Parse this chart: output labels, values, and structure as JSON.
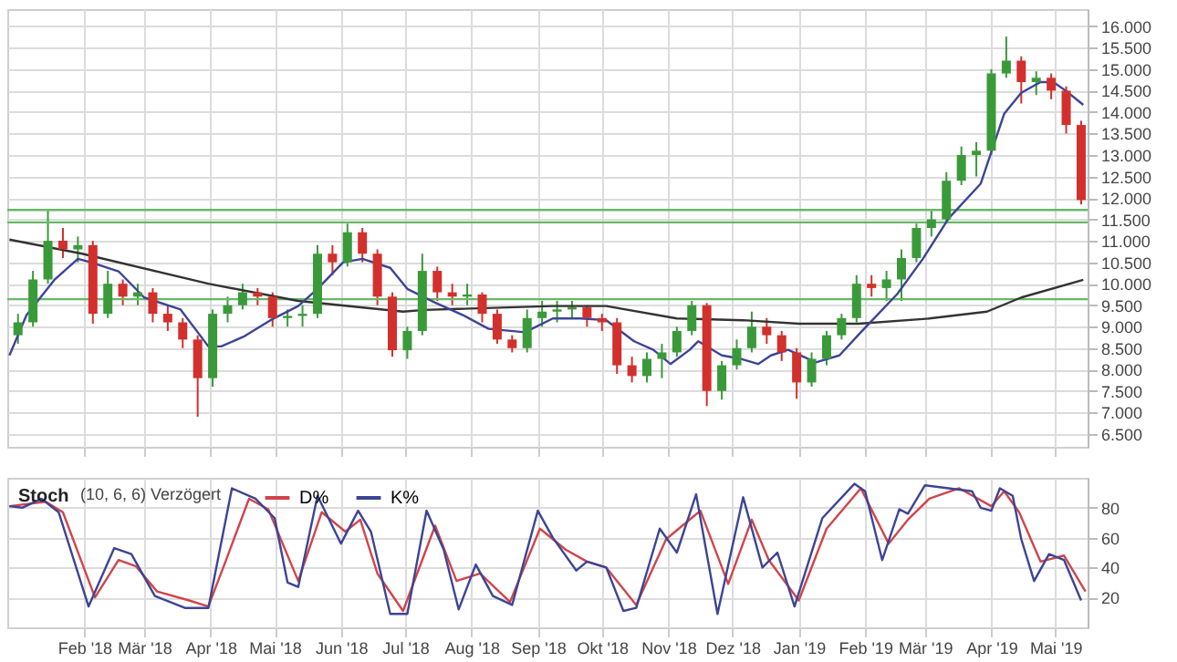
{
  "chart_data": [
    {
      "type": "candlestick",
      "x": [
        "2018-01-01",
        "2018-01-08",
        "2018-01-15",
        "2018-01-22",
        "2018-01-29",
        "2018-02-05",
        "2018-02-12",
        "2018-02-19",
        "2018-02-26",
        "2018-03-05",
        "2018-03-12",
        "2018-03-19",
        "2018-03-26",
        "2018-04-02",
        "2018-04-09",
        "2018-04-16",
        "2018-04-23",
        "2018-04-30",
        "2018-05-07",
        "2018-05-14",
        "2018-05-21",
        "2018-05-28",
        "2018-06-04",
        "2018-06-11",
        "2018-06-18",
        "2018-06-25",
        "2018-07-02",
        "2018-07-09",
        "2018-07-16",
        "2018-07-23",
        "2018-07-30",
        "2018-08-06",
        "2018-08-13",
        "2018-08-20",
        "2018-08-27",
        "2018-09-03",
        "2018-09-10",
        "2018-09-17",
        "2018-09-24",
        "2018-10-01",
        "2018-10-08",
        "2018-10-15",
        "2018-10-22",
        "2018-10-29",
        "2018-11-05",
        "2018-11-12",
        "2018-11-19",
        "2018-11-26",
        "2018-12-03",
        "2018-12-10",
        "2018-12-17",
        "2018-12-24",
        "2018-12-31",
        "2019-01-07",
        "2019-01-14",
        "2019-01-21",
        "2019-01-28",
        "2019-02-04",
        "2019-02-11",
        "2019-02-18",
        "2019-02-25",
        "2019-03-04",
        "2019-03-11",
        "2019-03-18",
        "2019-03-25",
        "2019-04-01",
        "2019-04-08",
        "2019-04-15",
        "2019-04-22",
        "2019-04-29",
        "2019-05-06",
        "2019-05-13"
      ],
      "ohlc": [
        [
          8800,
          9300,
          8600,
          9100
        ],
        [
          9100,
          10300,
          9000,
          10100
        ],
        [
          10100,
          11700,
          10000,
          11000
        ],
        [
          11000,
          11300,
          10600,
          10800
        ],
        [
          10800,
          11100,
          10500,
          10900
        ],
        [
          10900,
          11000,
          9070,
          9300
        ],
        [
          9300,
          10300,
          9200,
          10000
        ],
        [
          10000,
          10100,
          9500,
          9700
        ],
        [
          9700,
          10000,
          9500,
          9800
        ],
        [
          9800,
          9900,
          9100,
          9300
        ],
        [
          9300,
          9500,
          8900,
          9100
        ],
        [
          9100,
          9200,
          8500,
          8700
        ],
        [
          8700,
          8800,
          6900,
          7800
        ],
        [
          7800,
          9400,
          7600,
          9300
        ],
        [
          9300,
          9700,
          9100,
          9500
        ],
        [
          9500,
          10000,
          9400,
          9800
        ],
        [
          9800,
          9900,
          9500,
          9700
        ],
        [
          9700,
          9800,
          9000,
          9200
        ],
        [
          9200,
          9400,
          9000,
          9250
        ],
        [
          9250,
          9500,
          9000,
          9300
        ],
        [
          9300,
          10900,
          9200,
          10700
        ],
        [
          10700,
          10900,
          10200,
          10500
        ],
        [
          10500,
          11400,
          10400,
          11200
        ],
        [
          11200,
          11300,
          10500,
          10700
        ],
        [
          10700,
          10800,
          9500,
          9700
        ],
        [
          9700,
          9800,
          8300,
          8450
        ],
        [
          8450,
          9000,
          8250,
          8900
        ],
        [
          8900,
          10700,
          8800,
          10300
        ],
        [
          10300,
          10400,
          9600,
          9800
        ],
        [
          9800,
          10000,
          9500,
          9700
        ],
        [
          9700,
          10000,
          9500,
          9750
        ],
        [
          9750,
          9800,
          9100,
          9300
        ],
        [
          9300,
          9400,
          8600,
          8700
        ],
        [
          8700,
          8800,
          8400,
          8500
        ],
        [
          8500,
          9400,
          8400,
          9200
        ],
        [
          9200,
          9600,
          9000,
          9350
        ],
        [
          9350,
          9600,
          9100,
          9400
        ],
        [
          9400,
          9600,
          9200,
          9450
        ],
        [
          9450,
          9500,
          9000,
          9200
        ],
        [
          9200,
          9300,
          8900,
          9100
        ],
        [
          9100,
          9200,
          7900,
          8100
        ],
        [
          8100,
          8300,
          7700,
          7850
        ],
        [
          7850,
          8400,
          7700,
          8250
        ],
        [
          8250,
          8600,
          7800,
          8400
        ],
        [
          8400,
          9000,
          8300,
          8900
        ],
        [
          8900,
          9600,
          8800,
          9500
        ],
        [
          9500,
          9550,
          7150,
          7500
        ],
        [
          7500,
          8200,
          7300,
          8100
        ],
        [
          8100,
          8700,
          8000,
          8500
        ],
        [
          8500,
          9350,
          8400,
          9000
        ],
        [
          9000,
          9200,
          8600,
          8800
        ],
        [
          8800,
          8900,
          8200,
          8400
        ],
        [
          8400,
          8500,
          7320,
          7700
        ],
        [
          7700,
          8400,
          7600,
          8250
        ],
        [
          8250,
          8900,
          8100,
          8800
        ],
        [
          8800,
          9300,
          8700,
          9200
        ],
        [
          9200,
          10200,
          9100,
          10000
        ],
        [
          10000,
          10200,
          9700,
          9900
        ],
        [
          9900,
          10300,
          9600,
          10100
        ],
        [
          10100,
          10800,
          9600,
          10600
        ],
        [
          10600,
          11400,
          10500,
          11300
        ],
        [
          11300,
          11700,
          11100,
          11500
        ],
        [
          11500,
          12600,
          11400,
          12400
        ],
        [
          12400,
          13200,
          12300,
          13000
        ],
        [
          13000,
          13300,
          12500,
          13100
        ],
        [
          13100,
          15000,
          13000,
          14900
        ],
        [
          14900,
          15760,
          14800,
          15200
        ],
        [
          15200,
          15300,
          14200,
          14700
        ],
        [
          14700,
          14950,
          14400,
          14800
        ],
        [
          14800,
          14900,
          14300,
          14500
        ],
        [
          14500,
          14600,
          13500,
          13700
        ],
        [
          13700,
          13800,
          11850,
          11950
        ]
      ],
      "colors": [
        "#3a9a3a",
        "#3a9a3a",
        "#3a9a3a",
        "#d2302c",
        "#3a9a3a",
        "#d2302c",
        "#3a9a3a",
        "#d2302c",
        "#3a9a3a",
        "#d2302c",
        "#d2302c",
        "#d2302c",
        "#d2302c",
        "#3a9a3a",
        "#3a9a3a",
        "#3a9a3a",
        "#d2302c",
        "#d2302c",
        "#3a9a3a",
        "#3a9a3a",
        "#3a9a3a",
        "#d2302c",
        "#3a9a3a",
        "#d2302c",
        "#d2302c",
        "#d2302c",
        "#3a9a3a",
        "#3a9a3a",
        "#d2302c",
        "#d2302c",
        "#3a9a3a",
        "#d2302c",
        "#d2302c",
        "#d2302c",
        "#3a9a3a",
        "#3a9a3a",
        "#3a9a3a",
        "#3a9a3a",
        "#d2302c",
        "#d2302c",
        "#d2302c",
        "#d2302c",
        "#3a9a3a",
        "#3a9a3a",
        "#3a9a3a",
        "#3a9a3a",
        "#d2302c",
        "#3a9a3a",
        "#3a9a3a",
        "#3a9a3a",
        "#d2302c",
        "#d2302c",
        "#d2302c",
        "#3a9a3a",
        "#3a9a3a",
        "#3a9a3a",
        "#3a9a3a",
        "#d2302c",
        "#3a9a3a",
        "#3a9a3a",
        "#3a9a3a",
        "#3a9a3a",
        "#3a9a3a",
        "#3a9a3a",
        "#3a9a3a",
        "#3a9a3a",
        "#3a9a3a",
        "#d2302c",
        "#3a9a3a",
        "#d2302c",
        "#d2302c",
        "#d2302c"
      ],
      "series": [
        {
          "type": "line",
          "color": "#333333",
          "x": [
            "2017-12-28",
            "2018-01-31",
            "2018-03-31",
            "2018-05-12",
            "2018-06-30",
            "2018-07-10",
            "2018-09-08",
            "2018-10-03",
            "2018-11-05",
            "2018-12-06",
            "2019-01-01",
            "2019-01-29",
            "2019-03-03",
            "2019-03-30",
            "2019-04-15",
            "2019-05-14"
          ],
          "values": [
            11030,
            10700,
            10000,
            9600,
            9350,
            9390,
            9480,
            9480,
            9190,
            9150,
            9070,
            9070,
            9190,
            9350,
            9680,
            10090
          ]
        },
        {
          "type": "line",
          "color": "#3c4496",
          "x": [
            "2017-12-28",
            "2018-01-05",
            "2018-01-18",
            "2018-01-29",
            "2018-02-04",
            "2018-02-17",
            "2018-03-01",
            "2018-03-18",
            "2018-03-31",
            "2018-04-06",
            "2018-04-17",
            "2018-04-29",
            "2018-05-12",
            "2018-05-21",
            "2018-06-02",
            "2018-06-11",
            "2018-06-24",
            "2018-07-02",
            "2018-07-15",
            "2018-07-28",
            "2018-08-09",
            "2018-08-26",
            "2018-09-08",
            "2018-09-21",
            "2018-10-03",
            "2018-10-16",
            "2018-10-25",
            "2018-11-02",
            "2018-11-11",
            "2018-11-15",
            "2018-11-26",
            "2018-12-05",
            "2018-12-13",
            "2018-12-19",
            "2018-12-27",
            "2019-01-09",
            "2019-01-20",
            "2019-01-30",
            "2019-02-16",
            "2019-02-28",
            "2019-03-12",
            "2019-03-27",
            "2019-04-07",
            "2019-04-15",
            "2019-04-24",
            "2019-04-30",
            "2019-05-06",
            "2019-05-14"
          ],
          "values": [
            8330,
            9270,
            10090,
            10580,
            10500,
            10290,
            9680,
            9400,
            8540,
            8540,
            8780,
            9150,
            9480,
            9880,
            10500,
            10580,
            10370,
            9880,
            9560,
            9270,
            8950,
            8870,
            9190,
            9190,
            9150,
            8660,
            8460,
            8130,
            8460,
            8660,
            8330,
            8250,
            8130,
            8330,
            8460,
            8170,
            8330,
            8870,
            9760,
            10580,
            11520,
            12330,
            13960,
            14450,
            14700,
            14700,
            14490,
            14170
          ]
        }
      ],
      "xlim": [
        "2017-12-27",
        "2019-05-16"
      ],
      "xticks": [
        {
          "value": "2018-02-01",
          "label": null
        },
        {
          "value": "2018-03-01",
          "label": null
        },
        {
          "value": "2018-04-01",
          "label": null
        },
        {
          "value": "2018-05-01",
          "label": null
        },
        {
          "value": "2018-06-01",
          "label": null
        },
        {
          "value": "2018-07-01",
          "label": null
        },
        {
          "value": "2018-08-01",
          "label": null
        },
        {
          "value": "2018-09-01",
          "label": null
        },
        {
          "value": "2018-10-01",
          "label": null
        },
        {
          "value": "2018-11-01",
          "label": null
        },
        {
          "value": "2018-12-01",
          "label": null
        },
        {
          "value": "2019-01-01",
          "label": null
        },
        {
          "value": "2019-02-01",
          "label": null
        },
        {
          "value": "2019-03-01",
          "label": null
        },
        {
          "value": "2019-04-01",
          "label": null
        },
        {
          "value": "2019-05-01",
          "label": null
        }
      ],
      "ylim": [
        6200,
        16400
      ],
      "yticks": [
        {
          "value": 6500,
          "label": "6.500"
        },
        {
          "value": 7000,
          "label": "7.000"
        },
        {
          "value": 7500,
          "label": "7.500"
        },
        {
          "value": 8000,
          "label": "8.000"
        },
        {
          "value": 8500,
          "label": "8.500"
        },
        {
          "value": 9000,
          "label": "9.000"
        },
        {
          "value": 9500,
          "label": "9.500"
        },
        {
          "value": 10000,
          "label": "10.000"
        },
        {
          "value": 10500,
          "label": "10.500"
        },
        {
          "value": 11000,
          "label": "11.000"
        },
        {
          "value": 11500,
          "label": "11.500"
        },
        {
          "value": 12000,
          "label": "12.000"
        },
        {
          "value": 12500,
          "label": "12.500"
        },
        {
          "value": 13000,
          "label": "13.000"
        },
        {
          "value": 13500,
          "label": "13.500"
        },
        {
          "value": 14000,
          "label": "14.000"
        },
        {
          "value": 14500,
          "label": "14.500"
        },
        {
          "value": 15000,
          "label": "15.000"
        },
        {
          "value": 15500,
          "label": "15.500"
        },
        {
          "value": 16000,
          "label": "16.000"
        }
      ],
      "ref_lines": [
        {
          "axis": "y",
          "value": 11720,
          "color": "#66b866"
        },
        {
          "axis": "y",
          "value": 11430,
          "color": "#66b866"
        },
        {
          "axis": "y",
          "value": 9640,
          "color": "#66b866"
        }
      ],
      "grid": true,
      "tick_labels": "y"
    },
    {
      "type": "line",
      "title": "Stoch",
      "subtitle": "(10, 6, 6) Verzögert",
      "series": [
        {
          "name": "D%",
          "color": "#d0454a",
          "x": [
            "2017-12-28",
            "2018-01-14",
            "2018-01-22",
            "2018-02-06",
            "2018-02-17",
            "2018-02-25",
            "2018-03-07",
            "2018-03-22",
            "2018-03-31",
            "2018-04-08",
            "2018-04-19",
            "2018-04-28",
            "2018-05-12",
            "2018-05-23",
            "2018-06-03",
            "2018-06-10",
            "2018-06-18",
            "2018-06-30",
            "2018-07-15",
            "2018-07-25",
            "2018-08-05",
            "2018-08-19",
            "2018-09-02",
            "2018-09-14",
            "2018-09-24",
            "2018-10-03",
            "2018-10-17",
            "2018-10-31",
            "2018-11-16",
            "2018-11-29",
            "2018-12-10",
            "2018-12-18",
            "2019-01-01",
            "2019-01-14",
            "2019-01-30",
            "2019-02-12",
            "2019-02-21",
            "2019-03-03",
            "2019-03-17",
            "2019-04-01",
            "2019-04-07",
            "2019-04-14",
            "2019-04-24",
            "2019-05-05",
            "2019-05-15"
          ],
          "values": [
            81,
            84,
            77,
            20,
            45,
            41,
            24,
            18,
            14,
            44,
            86,
            79,
            31,
            77,
            64,
            72,
            36,
            11,
            68,
            31,
            36,
            17,
            66,
            52,
            44,
            40,
            15,
            59,
            78,
            29,
            72,
            45,
            18,
            66,
            93,
            56,
            72,
            86,
            93,
            81,
            91,
            77,
            44,
            48,
            24
          ]
        },
        {
          "name": "K%",
          "color": "#3c4496",
          "x": [
            "2017-12-28",
            "2018-01-03",
            "2018-01-12",
            "2018-01-20",
            "2018-02-03",
            "2018-02-15",
            "2018-02-23",
            "2018-03-06",
            "2018-03-20",
            "2018-03-31",
            "2018-04-11",
            "2018-04-22",
            "2018-05-01",
            "2018-05-07",
            "2018-05-12",
            "2018-05-21",
            "2018-06-01",
            "2018-06-09",
            "2018-06-15",
            "2018-06-24",
            "2018-07-02",
            "2018-07-11",
            "2018-07-19",
            "2018-07-26",
            "2018-08-03",
            "2018-08-11",
            "2018-08-20",
            "2018-09-01",
            "2018-09-08",
            "2018-09-19",
            "2018-09-24",
            "2018-10-03",
            "2018-10-11",
            "2018-10-17",
            "2018-10-28",
            "2018-11-05",
            "2018-11-14",
            "2018-11-24",
            "2018-12-06",
            "2018-12-15",
            "2018-12-22",
            "2018-12-30",
            "2019-01-12",
            "2019-01-27",
            "2019-02-01",
            "2019-02-09",
            "2019-02-17",
            "2019-02-21",
            "2019-03-01",
            "2019-03-12",
            "2019-03-23",
            "2019-03-27",
            "2019-04-01",
            "2019-04-05",
            "2019-04-11",
            "2019-04-15",
            "2019-04-21",
            "2019-04-28",
            "2019-05-05",
            "2019-05-13"
          ],
          "values": [
            81,
            80,
            86,
            77,
            14,
            53,
            49,
            21,
            13,
            13,
            93,
            86,
            73,
            30,
            27,
            88,
            56,
            78,
            64,
            9,
            9,
            78,
            52,
            12,
            42,
            21,
            15,
            78,
            60,
            38,
            44,
            40,
            11,
            13,
            66,
            50,
            89,
            9,
            87,
            40,
            50,
            14,
            73,
            96,
            91,
            45,
            79,
            76,
            95,
            93,
            91,
            80,
            78,
            93,
            88,
            59,
            31,
            49,
            45,
            18
          ]
        }
      ],
      "xlim": [
        "2017-12-27",
        "2019-05-16"
      ],
      "xticks": [
        {
          "value": "2018-02-01",
          "label": "Feb '18"
        },
        {
          "value": "2018-03-01",
          "label": "Mär '18"
        },
        {
          "value": "2018-04-01",
          "label": "Apr '18"
        },
        {
          "value": "2018-05-01",
          "label": "Mai '18"
        },
        {
          "value": "2018-06-01",
          "label": "Jun '18"
        },
        {
          "value": "2018-07-01",
          "label": "Jul '18"
        },
        {
          "value": "2018-08-01",
          "label": "Aug '18"
        },
        {
          "value": "2018-09-01",
          "label": "Sep '18"
        },
        {
          "value": "2018-10-01",
          "label": "Okt '18"
        },
        {
          "value": "2018-11-01",
          "label": "Nov '18"
        },
        {
          "value": "2018-12-01",
          "label": "Dez '18"
        },
        {
          "value": "2019-01-01",
          "label": "Jan '19"
        },
        {
          "value": "2019-02-01",
          "label": "Feb '19"
        },
        {
          "value": "2019-03-01",
          "label": "Mär '19"
        },
        {
          "value": "2019-04-01",
          "label": "Apr '19"
        },
        {
          "value": "2019-05-01",
          "label": "Mai '19"
        }
      ],
      "ylim": [
        0,
        100
      ],
      "yticks": [
        20,
        40,
        60,
        80
      ],
      "grid": true,
      "legend": "top left"
    }
  ]
}
